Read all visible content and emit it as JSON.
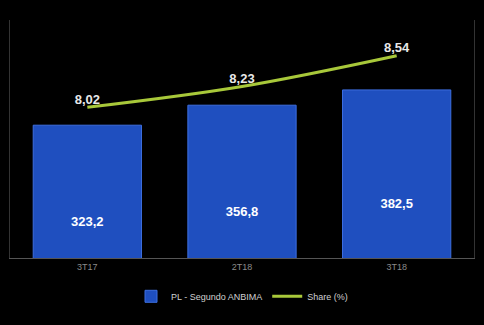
{
  "chart_data": {
    "type": "bar",
    "categories": [
      "3T17",
      "2T18",
      "3T18"
    ],
    "series": [
      {
        "name": "PL - Segundo ANBIMA",
        "type": "bar",
        "color": "#1f4fbf",
        "values": [
          323.2,
          356.8,
          382.5
        ],
        "value_labels": [
          "323,2",
          "356,8",
          "382,5"
        ]
      },
      {
        "name": "Share (%)",
        "type": "line",
        "axis": "y2",
        "color": "#a8c83a",
        "line_style": "solid",
        "marker": "none",
        "values": [
          8.02,
          8.23,
          8.54
        ],
        "value_labels": [
          "8,02",
          "8,23",
          "8,54"
        ]
      }
    ],
    "ylim": [
      100,
      500
    ],
    "y2lim": [
      6.5,
      8.9
    ],
    "data_labels": true,
    "tick_labels": "x",
    "grid": false,
    "legend": "bottom"
  }
}
